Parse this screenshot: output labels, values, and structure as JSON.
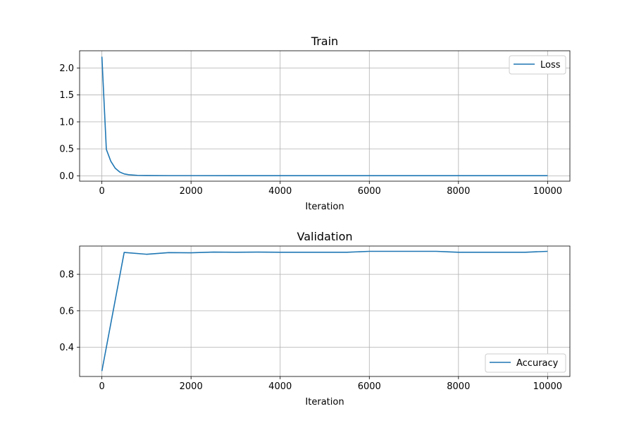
{
  "colors": {
    "series": "#1f77b4"
  },
  "chart_data": [
    {
      "type": "line",
      "title": "Train",
      "xlabel": "Iteration",
      "ylabel": "",
      "xlim": [
        -500,
        10500
      ],
      "ylim": [
        -0.1,
        2.32
      ],
      "xticks": [
        0,
        2000,
        4000,
        6000,
        8000,
        10000
      ],
      "xtick_labels": [
        "0",
        "2000",
        "4000",
        "6000",
        "8000",
        "10000"
      ],
      "yticks": [
        0.0,
        0.5,
        1.0,
        1.5,
        2.0
      ],
      "ytick_labels": [
        "0.0",
        "0.5",
        "1.0",
        "1.5",
        "2.0"
      ],
      "grid": true,
      "legend": "top-right",
      "series": [
        {
          "name": "Loss",
          "x": [
            0,
            100,
            200,
            300,
            400,
            500,
            600,
            800,
            1000,
            1500,
            2000,
            3000,
            4000,
            5000,
            6000,
            7000,
            8000,
            9000,
            10000
          ],
          "y": [
            2.21,
            0.49,
            0.27,
            0.14,
            0.07,
            0.035,
            0.02,
            0.008,
            0.005,
            0.003,
            0.003,
            0.002,
            0.002,
            0.002,
            0.002,
            0.002,
            0.002,
            0.002,
            0.002
          ]
        }
      ]
    },
    {
      "type": "line",
      "title": "Validation",
      "xlabel": "Iteration",
      "ylabel": "",
      "xlim": [
        -500,
        10500
      ],
      "ylim": [
        0.24,
        0.955
      ],
      "xticks": [
        0,
        2000,
        4000,
        6000,
        8000,
        10000
      ],
      "xtick_labels": [
        "0",
        "2000",
        "4000",
        "6000",
        "8000",
        "10000"
      ],
      "yticks": [
        0.4,
        0.6,
        0.8
      ],
      "ytick_labels": [
        "0.4",
        "0.6",
        "0.8"
      ],
      "grid": true,
      "legend": "bottom-right",
      "series": [
        {
          "name": "Accuracy",
          "x": [
            0,
            500,
            1000,
            1500,
            2000,
            2500,
            3000,
            3500,
            4000,
            4500,
            5000,
            5500,
            6000,
            6500,
            7000,
            7500,
            8000,
            8500,
            9000,
            9500,
            10000
          ],
          "y": [
            0.27,
            0.92,
            0.91,
            0.919,
            0.918,
            0.922,
            0.921,
            0.922,
            0.921,
            0.921,
            0.921,
            0.921,
            0.926,
            0.926,
            0.926,
            0.926,
            0.921,
            0.921,
            0.921,
            0.921,
            0.926
          ]
        }
      ]
    }
  ]
}
